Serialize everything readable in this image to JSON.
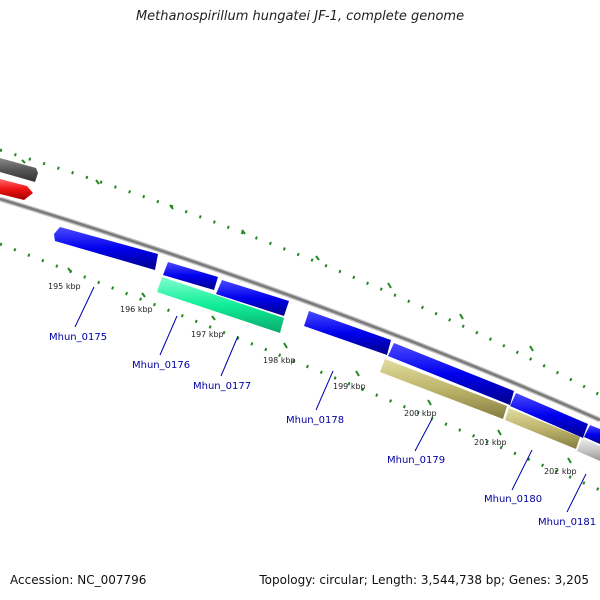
{
  "title": "Methanospirillum hungatei JF-1, complete genome",
  "footer": {
    "accession": "Accession: NC_007796",
    "summary": "Topology: circular; Length: 3,544,738 bp; Genes: 3,205"
  },
  "colors": {
    "forward_gene": "#0000ee",
    "reverse_gene_cyan": "#11ee99",
    "reverse_gene_khaki": "#bdb56b",
    "reverse_gene_grey": "#c8c8c8",
    "gene_red": "#ee1111",
    "gene_darkgrey": "#555555",
    "backbone": "#888888",
    "ticks": "#228822",
    "gene_label": "#0000a0"
  },
  "scale_labels": [
    "195 kbp",
    "196 kbp",
    "197 kbp",
    "198 kbp",
    "199 kbp",
    "200 kbp",
    "201 kbp",
    "202 kbp"
  ],
  "gene_labels": [
    "Mhun_0175",
    "Mhun_0176",
    "Mhun_0177",
    "Mhun_0178",
    "Mhun_0179",
    "Mhun_0180",
    "Mhun_0181"
  ],
  "genes": [
    {
      "label": "Mhun_0175",
      "strand": "+",
      "color": "forward_gene"
    },
    {
      "label": "Mhun_0176",
      "strand": "+",
      "color": "forward_gene"
    },
    {
      "label": "Mhun_0177",
      "strand": "+",
      "color": "forward_gene"
    },
    {
      "label": "Mhun_0176",
      "strand": "-",
      "color": "reverse_gene_cyan"
    },
    {
      "label": "Mhun_0178",
      "strand": "+",
      "color": "forward_gene"
    },
    {
      "label": "Mhun_0179",
      "strand": "+",
      "color": "forward_gene"
    },
    {
      "label": "Mhun_0180",
      "strand": "+",
      "color": "forward_gene"
    },
    {
      "label": "Mhun_0181",
      "strand": "+",
      "color": "forward_gene"
    },
    {
      "label": "Mhun_0179",
      "strand": "-",
      "color": "reverse_gene_khaki"
    },
    {
      "label": "Mhun_0180",
      "strand": "-",
      "color": "reverse_gene_khaki"
    },
    {
      "label": "Mhun_0181",
      "strand": "-",
      "color": "reverse_gene_grey"
    }
  ]
}
